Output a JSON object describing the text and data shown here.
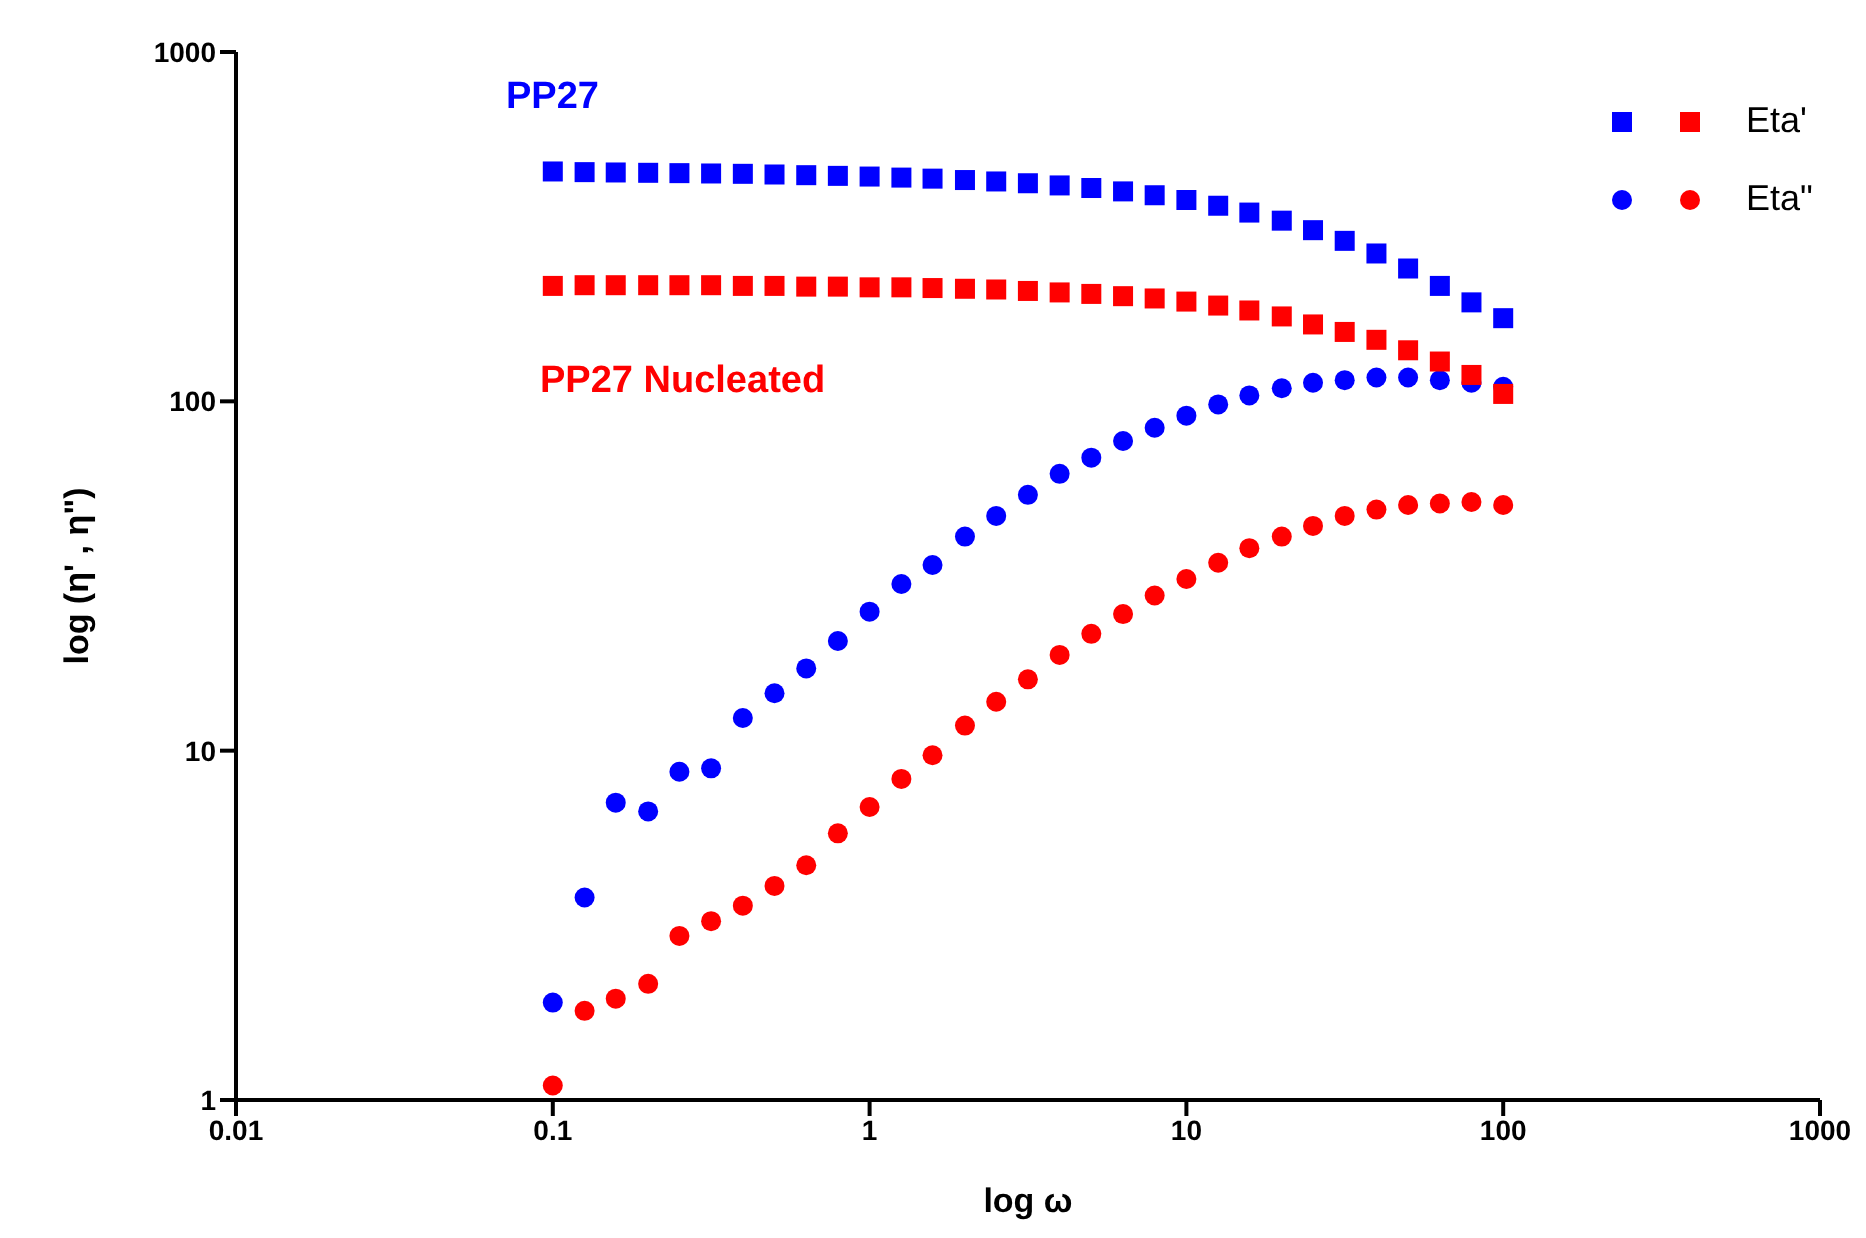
{
  "chart_data": {
    "type": "scatter",
    "xlabel": "log ω",
    "ylabel": "log (η' , η\")",
    "x": [
      0.1,
      0.126,
      0.158,
      0.2,
      0.251,
      0.316,
      0.398,
      0.501,
      0.631,
      0.794,
      1,
      1.26,
      1.58,
      2,
      2.51,
      3.16,
      3.98,
      5.01,
      6.31,
      7.94,
      10,
      12.6,
      15.8,
      20,
      25.1,
      31.6,
      39.8,
      50.1,
      63.1,
      79.4,
      100
    ],
    "series": [
      {
        "color": "#0000ff",
        "marker": "square",
        "values": [
          455,
          453,
          452,
          451,
          450,
          449,
          448,
          446,
          444,
          442,
          440,
          437,
          434,
          430,
          426,
          421,
          415,
          408,
          399,
          389,
          377,
          363,
          347,
          329,
          309,
          288,
          265,
          240,
          214,
          192,
          173
        ]
      },
      {
        "name": "Eta'",
        "color": "#ff0000",
        "marker": "square",
        "values": [
          214,
          215,
          215,
          215,
          215,
          215,
          214,
          214,
          213,
          213,
          212,
          212,
          211,
          210,
          209,
          207,
          205,
          203,
          200,
          197,
          193,
          188,
          182,
          175,
          166,
          158,
          150,
          140,
          130,
          119,
          105
        ]
      },
      {
        "color": "#0000ff",
        "marker": "circle",
        "values": [
          1.9,
          3.8,
          7.1,
          6.7,
          8.7,
          8.9,
          12.4,
          14.6,
          17.2,
          20.6,
          25,
          30,
          34,
          41,
          47,
          54,
          62,
          69,
          77,
          84,
          91,
          98,
          104,
          109,
          113,
          115,
          117,
          117,
          115,
          113,
          110
        ]
      },
      {
        "name": "Eta\"",
        "color": "#ff0000",
        "marker": "circle",
        "values": [
          1.1,
          1.8,
          1.95,
          2.15,
          2.95,
          3.25,
          3.6,
          4.1,
          4.7,
          5.8,
          6.9,
          8.3,
          9.7,
          11.8,
          13.8,
          16,
          18.8,
          21.6,
          24.6,
          27.8,
          31,
          34.5,
          38,
          41,
          44,
          47,
          49,
          50.5,
          51,
          51.5,
          50.5
        ]
      }
    ],
    "annotations": [
      "PP27",
      "PP27 Nucleated"
    ],
    "log": "xy",
    "xlim": [
      0.01,
      1000
    ],
    "xticks": [
      0.01,
      0.1,
      1,
      10,
      100,
      1000
    ],
    "ylim": [
      1,
      1000
    ],
    "yticks": [
      1,
      10,
      100,
      1000
    ],
    "grid": false,
    "legend": "top right"
  }
}
